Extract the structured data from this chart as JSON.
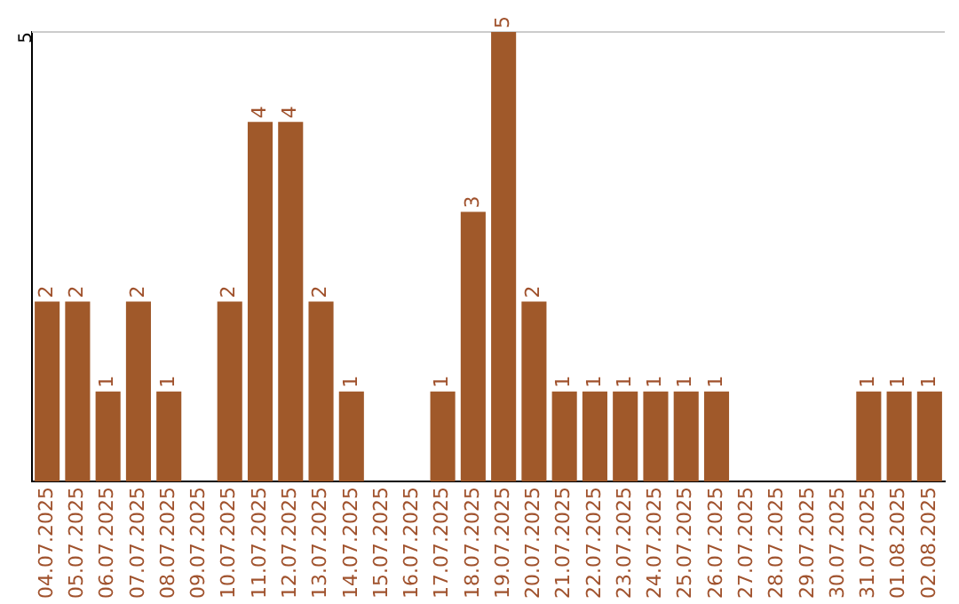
{
  "chart_data": {
    "type": "bar",
    "categories": [
      "04.07.2025",
      "05.07.2025",
      "06.07.2025",
      "07.07.2025",
      "08.07.2025",
      "09.07.2025",
      "10.07.2025",
      "11.07.2025",
      "12.07.2025",
      "13.07.2025",
      "14.07.2025",
      "15.07.2025",
      "16.07.2025",
      "17.07.2025",
      "18.07.2025",
      "19.07.2025",
      "20.07.2025",
      "21.07.2025",
      "22.07.2025",
      "23.07.2025",
      "24.07.2025",
      "25.07.2025",
      "26.07.2025",
      "27.07.2025",
      "28.07.2025",
      "29.07.2025",
      "30.07.2025",
      "31.07.2025",
      "01.08.2025",
      "02.08.2025"
    ],
    "values": [
      2,
      2,
      1,
      2,
      1,
      0,
      2,
      4,
      4,
      2,
      1,
      0,
      0,
      1,
      3,
      5,
      2,
      1,
      1,
      1,
      1,
      1,
      1,
      0,
      0,
      0,
      0,
      1,
      1,
      1
    ],
    "value_labels": [
      "2",
      "2",
      "1",
      "2",
      "1",
      null,
      "2",
      "4",
      "4",
      "2",
      "1",
      null,
      null,
      "1",
      "3",
      "5",
      "2",
      "1",
      "1",
      "1",
      "1",
      "1",
      "1",
      null,
      null,
      null,
      null,
      "1",
      "1",
      "1"
    ],
    "color": "#a0592a",
    "ylim": [
      0,
      5
    ],
    "yticks": [
      5
    ],
    "ref_lines": [
      {
        "axis": "y",
        "value": 5,
        "color": "#cccccc"
      }
    ],
    "legend": false
  }
}
